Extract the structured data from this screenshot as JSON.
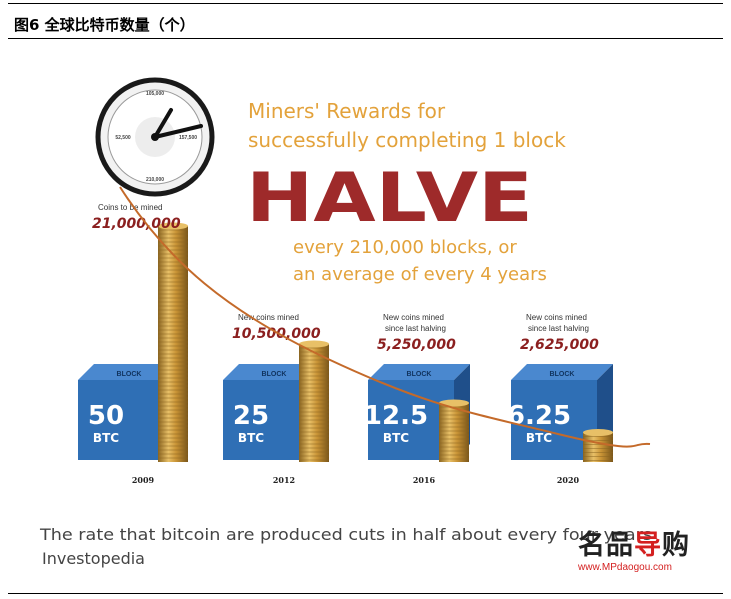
{
  "figure": {
    "title": "图6  全球比特币数量（个）"
  },
  "infographic": {
    "heading_line1": "Miners' Rewards for",
    "heading_line2": "successfully completing 1 block",
    "big_word": "HALVE",
    "sub_line1": "every 210,000 blocks, or",
    "sub_line2": "an average of every 4 years",
    "block_word": "BLOCK",
    "unit": "BTC",
    "periods": [
      {
        "year": "2009",
        "note1": "Coins to be mined",
        "note2": "",
        "amount": "21,000,000",
        "reward": "50",
        "stack_fraction": 1.0
      },
      {
        "year": "2012",
        "note1": "New coins mined",
        "note2": "",
        "amount": "10,500,000",
        "reward": "25",
        "stack_fraction": 0.5
      },
      {
        "year": "2016",
        "note1": "New coins mined",
        "note2": "since last halving",
        "amount": "5,250,000",
        "reward": "12.5",
        "stack_fraction": 0.25
      },
      {
        "year": "2020",
        "note1": "New coins mined",
        "note2": "since last halving",
        "amount": "2,625,000",
        "reward": "6.25",
        "stack_fraction": 0.125
      }
    ],
    "caption": "The rate that bitcoin are produced cuts in half about every four years",
    "source": "Investopedia",
    "clock_labels": [
      "105,000",
      "157,500",
      "210,000",
      "52,500"
    ],
    "colors": {
      "accent_orange": "#e3a23b",
      "halve_red": "#9e2a2a",
      "cube_blue": "#2f6fb5",
      "coin_gold": "#c99436",
      "curve": "#c46a2a"
    }
  },
  "watermark": {
    "logo_part1": "名品",
    "logo_part2": "导",
    "logo_part3": "购",
    "url": "www.MPdaogou.com"
  }
}
